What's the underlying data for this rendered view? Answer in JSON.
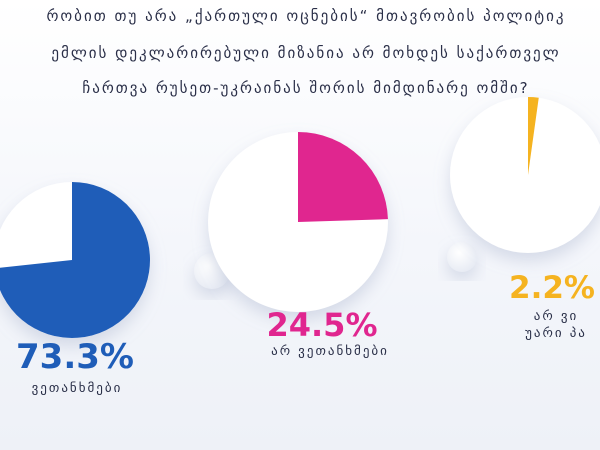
{
  "title_lines": [
    "რობით თუ არა „ქართული ოცნების“ მთავრობის პოლიტიკ",
    "ემლის დეკლარირებული მიზანია არ მოხდეს საქართველ",
    "ჩართვა რუსეთ-უკრაინას შორის მიმდინარე ომში?"
  ],
  "chart_data": {
    "type": "pie",
    "title": "რობით თუ არა „ქართული ოცნების“ მთავრობის პოლიტიკ ემლის დეკლარირებული მიზანია არ მოხდეს საქართველ ჩართვა რუსეთ-უკრაინას შორის მიმდინარე ომში?",
    "slices": [
      {
        "percent_label": "73.3%",
        "label_lines": [
          "ვეთანხმები"
        ],
        "value": 73.3,
        "color": "#1f5db8",
        "base_color": "#ffffff"
      },
      {
        "percent_label": "24.5%",
        "label_lines": [
          "არ ვეთანხმები"
        ],
        "value": 24.5,
        "color": "#e0268f",
        "base_color": "#ffffff"
      },
      {
        "percent_label": "2.2%",
        "label_lines": [
          "არ ვი",
          "უარი პა"
        ],
        "value": 2.2,
        "color": "#f5b320",
        "base_color": "#ffffff"
      }
    ]
  }
}
